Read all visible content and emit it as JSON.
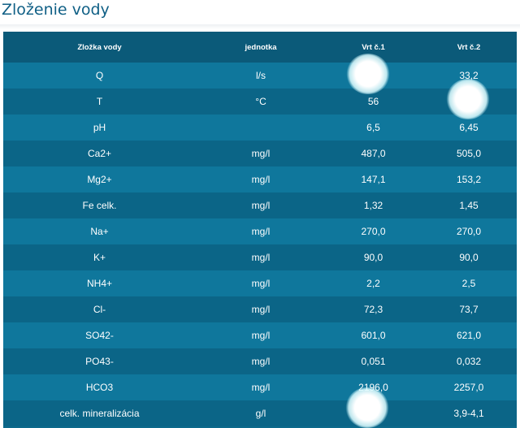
{
  "title": "Zloženie vody",
  "table": {
    "headers": [
      "Zložka vody",
      "jednotka",
      "Vrt č.1",
      "Vrt č.2"
    ],
    "rows": [
      [
        "Q",
        "l/s",
        "",
        "33,2"
      ],
      [
        "T",
        "°C",
        "56",
        ""
      ],
      [
        "pH",
        "",
        "6,5",
        "6,45"
      ],
      [
        "Ca2+",
        "mg/l",
        "487,0",
        "505,0"
      ],
      [
        "Mg2+",
        "mg/l",
        "147,1",
        "153,2"
      ],
      [
        "Fe celk.",
        "mg/l",
        "1,32",
        "1,45"
      ],
      [
        "Na+",
        "mg/l",
        "270,0",
        "270,0"
      ],
      [
        "K+",
        "mg/l",
        "90,0",
        "90,0"
      ],
      [
        "NH4+",
        "mg/l",
        "2,2",
        "2,5"
      ],
      [
        "Cl-",
        "mg/l",
        "72,3",
        "73,7"
      ],
      [
        "SO42-",
        "mg/l",
        "601,0",
        "621,0"
      ],
      [
        "PO43-",
        "mg/l",
        "0,051",
        "0,032"
      ],
      [
        "HCO3",
        "mg/l",
        "2196,0",
        "2257,0"
      ],
      [
        "celk. mineralizácia",
        "g/l",
        "",
        "3,9-4,1"
      ]
    ]
  },
  "colors": {
    "title": "#0f5f85",
    "header_bg": "#0b5a79",
    "row_odd": "#0f779c",
    "row_even": "#0b6587"
  }
}
